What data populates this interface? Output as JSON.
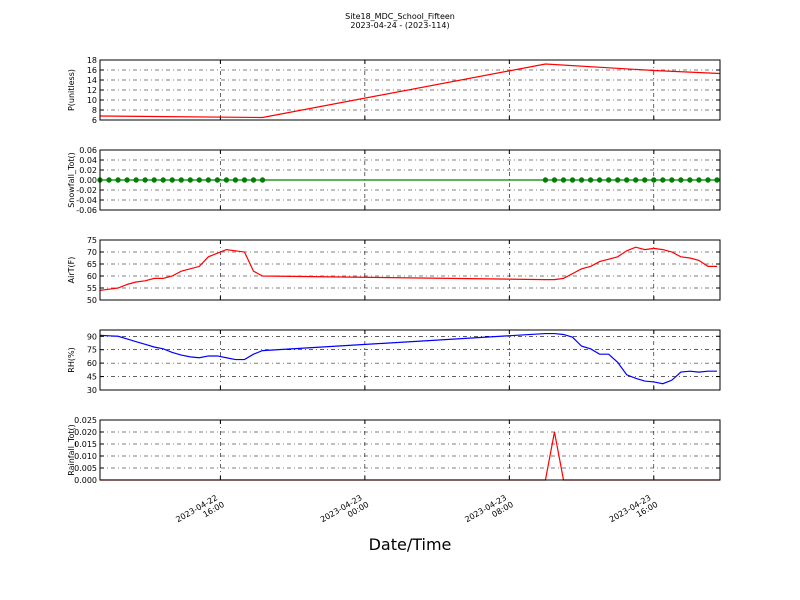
{
  "title": "Site18_MDC_School_Fifteen",
  "subtitle": "2023-04-24 - (2023-114)",
  "chart_data": [
    {
      "type": "line",
      "ylabel": "P(unitless)",
      "color": "#ff0000",
      "grid": true,
      "ylim": [
        6,
        18
      ],
      "yticks": [
        6,
        8,
        10,
        12,
        14,
        16,
        18
      ],
      "x": [
        "2023-04-22 09:20",
        "2023-04-22 18:20",
        "2023-04-23 10:00",
        "2023-04-23 16:00",
        "2023-04-23 19:40"
      ],
      "values": [
        6.8,
        6.5,
        17.2,
        15.9,
        15.3
      ]
    },
    {
      "type": "line",
      "ylabel": "Snowfall_Tot()",
      "color": "#008000",
      "marker": "o",
      "grid": true,
      "ylim": [
        -0.06,
        0.06
      ],
      "yticks": [
        {
          "value": -0.06,
          "label": "-0.06"
        },
        {
          "value": -0.04,
          "label": "-0.04"
        },
        {
          "value": -0.02,
          "label": "-0.02"
        },
        {
          "value": 0,
          "label": "0.00"
        },
        {
          "value": 0.02,
          "label": "0.02"
        },
        {
          "value": 0.04,
          "label": "0.04"
        },
        {
          "value": 0.06,
          "label": "0.06"
        }
      ],
      "x": [
        "2023-04-22 09:20",
        "2023-04-22 09:50",
        "2023-04-22 10:20",
        "2023-04-22 10:50",
        "2023-04-22 11:20",
        "2023-04-22 11:50",
        "2023-04-22 12:20",
        "2023-04-22 12:50",
        "2023-04-22 13:20",
        "2023-04-22 13:50",
        "2023-04-22 14:20",
        "2023-04-22 14:50",
        "2023-04-22 15:20",
        "2023-04-22 15:50",
        "2023-04-22 16:20",
        "2023-04-22 16:50",
        "2023-04-22 17:20",
        "2023-04-22 17:50",
        "2023-04-22 18:20",
        "2023-04-23 10:00",
        "2023-04-23 10:30",
        "2023-04-23 11:00",
        "2023-04-23 11:30",
        "2023-04-23 12:00",
        "2023-04-23 12:30",
        "2023-04-23 13:00",
        "2023-04-23 13:30",
        "2023-04-23 14:00",
        "2023-04-23 14:30",
        "2023-04-23 15:00",
        "2023-04-23 15:30",
        "2023-04-23 16:00",
        "2023-04-23 16:30",
        "2023-04-23 17:00",
        "2023-04-23 17:30",
        "2023-04-23 18:00",
        "2023-04-23 18:30",
        "2023-04-23 19:00",
        "2023-04-23 19:30"
      ],
      "values": [
        0,
        0,
        0,
        0,
        0,
        0,
        0,
        0,
        0,
        0,
        0,
        0,
        0,
        0,
        0,
        0,
        0,
        0,
        0,
        0,
        0,
        0,
        0,
        0,
        0,
        0,
        0,
        0,
        0,
        0,
        0,
        0,
        0,
        0,
        0,
        0,
        0,
        0,
        0
      ]
    },
    {
      "type": "line",
      "ylabel": "AirT(F)",
      "color": "#ff0000",
      "grid": true,
      "ylim": [
        50,
        75
      ],
      "yticks": [
        50,
        55,
        60,
        65,
        70,
        75
      ],
      "x": [
        "2023-04-22 09:20",
        "2023-04-22 09:50",
        "2023-04-22 10:20",
        "2023-04-22 10:50",
        "2023-04-22 11:20",
        "2023-04-22 11:50",
        "2023-04-22 12:20",
        "2023-04-22 12:50",
        "2023-04-22 13:20",
        "2023-04-22 13:50",
        "2023-04-22 14:20",
        "2023-04-22 14:50",
        "2023-04-22 15:20",
        "2023-04-22 15:50",
        "2023-04-22 16:20",
        "2023-04-22 16:50",
        "2023-04-22 17:20",
        "2023-04-22 17:50",
        "2023-04-22 18:20",
        "2023-04-23 10:00",
        "2023-04-23 10:30",
        "2023-04-23 11:00",
        "2023-04-23 11:30",
        "2023-04-23 12:00",
        "2023-04-23 12:30",
        "2023-04-23 13:00",
        "2023-04-23 13:30",
        "2023-04-23 14:00",
        "2023-04-23 14:30",
        "2023-04-23 15:00",
        "2023-04-23 15:30",
        "2023-04-23 16:00",
        "2023-04-23 16:30",
        "2023-04-23 17:00",
        "2023-04-23 17:30",
        "2023-04-23 18:00",
        "2023-04-23 18:30",
        "2023-04-23 19:00",
        "2023-04-23 19:30"
      ],
      "values": [
        54,
        54.5,
        55,
        56.5,
        57.5,
        58,
        59,
        59,
        60,
        62,
        63,
        64,
        68,
        69.5,
        71,
        70.5,
        70,
        62,
        60,
        58.5,
        58.5,
        59,
        61,
        63,
        64,
        66,
        67,
        68,
        70.5,
        72,
        71,
        71.5,
        71,
        70,
        68,
        67.5,
        66.5,
        64,
        64
      ]
    },
    {
      "type": "line",
      "ylabel": "RH(%)",
      "color": "#0000ff",
      "grid": true,
      "ylim": [
        30,
        97
      ],
      "yticks": [
        30,
        45,
        60,
        75,
        90
      ],
      "x": [
        "2023-04-22 09:20",
        "2023-04-22 09:50",
        "2023-04-22 10:20",
        "2023-04-22 10:50",
        "2023-04-22 11:20",
        "2023-04-22 11:50",
        "2023-04-22 12:20",
        "2023-04-22 12:50",
        "2023-04-22 13:20",
        "2023-04-22 13:50",
        "2023-04-22 14:20",
        "2023-04-22 14:50",
        "2023-04-22 15:20",
        "2023-04-22 15:50",
        "2023-04-22 16:20",
        "2023-04-22 16:50",
        "2023-04-22 17:20",
        "2023-04-22 17:50",
        "2023-04-22 18:20",
        "2023-04-23 10:00",
        "2023-04-23 10:30",
        "2023-04-23 11:00",
        "2023-04-23 11:30",
        "2023-04-23 12:00",
        "2023-04-23 12:30",
        "2023-04-23 13:00",
        "2023-04-23 13:30",
        "2023-04-23 14:00",
        "2023-04-23 14:30",
        "2023-04-23 15:00",
        "2023-04-23 15:30",
        "2023-04-23 16:00",
        "2023-04-23 16:30",
        "2023-04-23 17:00",
        "2023-04-23 17:30",
        "2023-04-23 18:00",
        "2023-04-23 18:30",
        "2023-04-23 19:00",
        "2023-04-23 19:30"
      ],
      "values": [
        91,
        90.5,
        90,
        87,
        84,
        81,
        78,
        76,
        72,
        69,
        67,
        66,
        68,
        68,
        66,
        64,
        64,
        70,
        74,
        93,
        93,
        92,
        89,
        79,
        76,
        70,
        70,
        61,
        47,
        43,
        40,
        39,
        37,
        41,
        50,
        51,
        50,
        51,
        51
      ]
    },
    {
      "type": "line",
      "ylabel": "Rainfall_Tot()",
      "xlabel": "Date/Time",
      "color": "#ff0000",
      "grid": true,
      "ylim": [
        0,
        0.025
      ],
      "yticks": [
        {
          "value": 0,
          "label": "0.000"
        },
        {
          "value": 0.005,
          "label": "0.005"
        },
        {
          "value": 0.01,
          "label": "0.010"
        },
        {
          "value": 0.015,
          "label": "0.015"
        },
        {
          "value": 0.02,
          "label": "0.020"
        },
        {
          "value": 0.025,
          "label": "0.025"
        }
      ],
      "xlim": [
        "2023-04-22 09:20",
        "2023-04-23 19:40"
      ],
      "xticks": [
        "2023-04-22 16:00",
        "2023-04-23 00:00",
        "2023-04-23 08:00",
        "2023-04-23 16:00"
      ],
      "x": [
        "2023-04-22 09:20",
        "2023-04-22 18:20",
        "2023-04-23 10:00",
        "2023-04-23 10:30",
        "2023-04-23 11:00",
        "2023-04-23 19:40"
      ],
      "values": [
        0,
        0,
        0,
        0.02,
        0,
        0
      ]
    }
  ]
}
